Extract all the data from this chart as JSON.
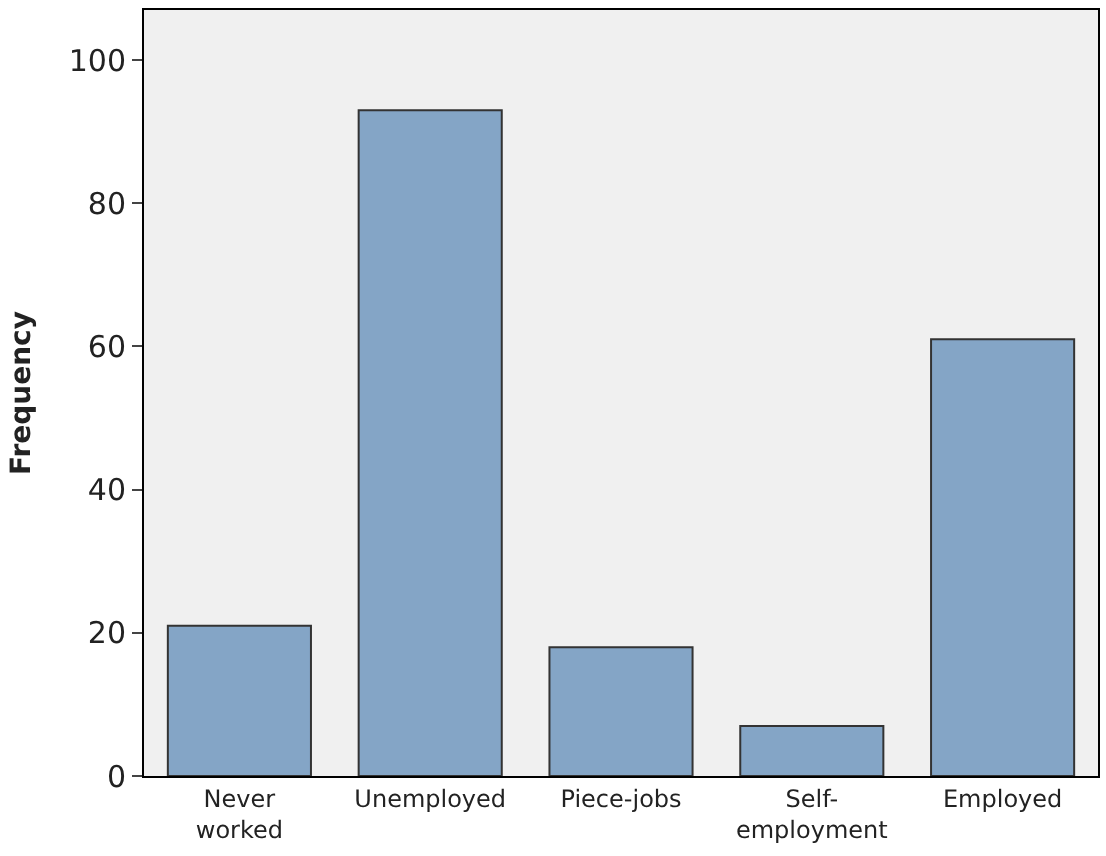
{
  "chart_data": {
    "type": "bar",
    "ylabel": "Frequency",
    "categories": [
      "Never\nworked",
      "Unemployed",
      "Piece-jobs",
      "Self-\nemployment",
      "Employed"
    ],
    "values": [
      21,
      93,
      18,
      7,
      61
    ],
    "color": "#84a5c6",
    "ylim": [
      0,
      107
    ],
    "yticks": [
      0,
      20,
      40,
      60,
      80,
      100
    ],
    "grid": false
  }
}
